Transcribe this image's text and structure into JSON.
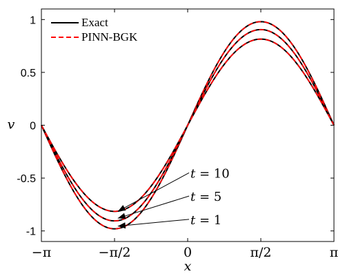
{
  "chart_data": {
    "type": "line",
    "xlabel": "x",
    "ylabel": "v",
    "xlim": [
      -3.14159,
      3.14159
    ],
    "ylim": [
      -1.1,
      1.1
    ],
    "x_ticks": [
      {
        "value": -3.14159,
        "label": "−π"
      },
      {
        "value": -1.5708,
        "label": "−π/2"
      },
      {
        "value": 0,
        "label": "0"
      },
      {
        "value": 1.5708,
        "label": "π/2"
      },
      {
        "value": 3.14159,
        "label": "π"
      }
    ],
    "y_ticks": [
      {
        "value": -1,
        "label": "-1"
      },
      {
        "value": -0.5,
        "label": "-0.5"
      },
      {
        "value": 0,
        "label": "0"
      },
      {
        "value": 0.5,
        "label": "0.5"
      },
      {
        "value": 1,
        "label": "1"
      }
    ],
    "grid": false,
    "legend_position": "top-left",
    "legend": [
      {
        "name": "Exact",
        "color": "#000000",
        "style": "solid"
      },
      {
        "name": "PINN-BGK",
        "color": "#ff0000",
        "style": "dashed"
      }
    ],
    "curves": [
      {
        "t_label": "t = 1",
        "amplitude": 0.98
      },
      {
        "t_label": "t = 5",
        "amplitude": 0.905
      },
      {
        "t_label": "t = 10",
        "amplitude": 0.815
      }
    ],
    "annotations": [
      {
        "text": "t = 10",
        "t_var": "t",
        "t_value": "10",
        "arrow_to_x": -1.5,
        "arrow_to_y": -0.815,
        "text_x": 0.0,
        "text_y": -0.45
      },
      {
        "text": "t = 5",
        "t_var": "t",
        "t_value": "5",
        "arrow_to_x": -1.5,
        "arrow_to_y": -0.88,
        "text_x": 0.0,
        "text_y": -0.67
      },
      {
        "text": "t = 1",
        "t_var": "t",
        "t_value": "1",
        "arrow_to_x": -1.5,
        "arrow_to_y": -0.955,
        "text_x": 0.0,
        "text_y": -0.89
      }
    ],
    "colors": {
      "exact": "#000000",
      "pinn": "#ff0000",
      "axes": "#000000"
    }
  }
}
